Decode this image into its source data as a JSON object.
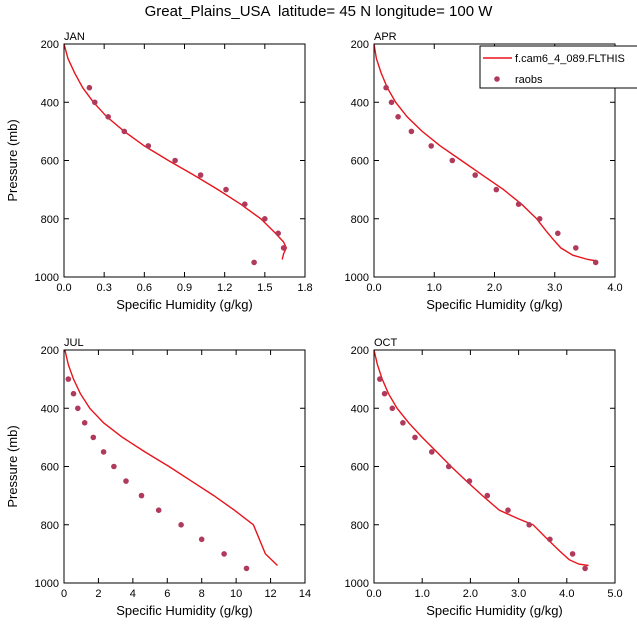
{
  "figure_title": "Great_Plains_USA  latitude= 45 N longitude= 100 W",
  "colors": {
    "model_line": "#e8141c",
    "obs_marker": "#b03a5b",
    "axis": "#000000"
  },
  "legend": {
    "model_label": "f.cam6_4_089.FLTHIS",
    "obs_label": "raobs"
  },
  "chart_data": [
    {
      "type": "line",
      "panel": "JAN",
      "xlabel": "Specific Humidity (g/kg)",
      "ylabel": "Pressure (mb)",
      "xlim": [
        0.0,
        1.8
      ],
      "ylim": [
        200,
        1000
      ],
      "y_inverted": true,
      "xticks": [
        "0.0",
        "0.3",
        "0.6",
        "0.9",
        "1.2",
        "1.5",
        "1.8"
      ],
      "yticks": [
        "200",
        "400",
        "600",
        "800",
        "1000"
      ],
      "series": [
        {
          "name": "f.cam6_4_089.FLTHIS",
          "kind": "line",
          "x": [
            0.0,
            0.03,
            0.08,
            0.14,
            0.22,
            0.32,
            0.45,
            0.6,
            0.78,
            0.97,
            1.15,
            1.32,
            1.47,
            1.58,
            1.64,
            1.66,
            1.64,
            1.63
          ],
          "y": [
            200,
            250,
            300,
            350,
            400,
            450,
            500,
            550,
            600,
            650,
            700,
            750,
            800,
            850,
            880,
            900,
            920,
            940
          ]
        },
        {
          "name": "raobs",
          "kind": "scatter",
          "x": [
            0.19,
            0.23,
            0.33,
            0.45,
            0.63,
            0.83,
            1.02,
            1.21,
            1.35,
            1.5,
            1.6,
            1.64,
            1.42
          ],
          "y": [
            350,
            400,
            450,
            500,
            550,
            600,
            650,
            700,
            750,
            800,
            850,
            900,
            950
          ]
        }
      ]
    },
    {
      "type": "line",
      "panel": "APR",
      "xlabel": "Specific Humidity (g/kg)",
      "ylabel": "",
      "xlim": [
        0.0,
        4.0
      ],
      "ylim": [
        200,
        1000
      ],
      "y_inverted": true,
      "xticks": [
        "0.0",
        "1.0",
        "2.0",
        "3.0",
        "4.0"
      ],
      "yticks": [
        "200",
        "400",
        "600",
        "800",
        "1000"
      ],
      "series": [
        {
          "name": "f.cam6_4_089.FLTHIS",
          "kind": "line",
          "x": [
            0.0,
            0.04,
            0.12,
            0.22,
            0.36,
            0.55,
            0.8,
            1.1,
            1.45,
            1.8,
            2.15,
            2.45,
            2.7,
            2.85,
            2.97,
            3.1,
            3.3,
            3.55,
            3.7
          ],
          "y": [
            200,
            250,
            300,
            350,
            400,
            450,
            500,
            550,
            600,
            650,
            700,
            750,
            800,
            840,
            870,
            900,
            925,
            940,
            945
          ]
        },
        {
          "name": "raobs",
          "kind": "scatter",
          "x": [
            0.2,
            0.29,
            0.4,
            0.62,
            0.95,
            1.3,
            1.68,
            2.03,
            2.4,
            2.75,
            3.05,
            3.35,
            3.68
          ],
          "y": [
            350,
            400,
            450,
            500,
            550,
            600,
            650,
            700,
            750,
            800,
            850,
            900,
            950
          ]
        }
      ]
    },
    {
      "type": "line",
      "panel": "JUL",
      "xlabel": "Specific Humidity (g/kg)",
      "ylabel": "Pressure (mb)",
      "xlim": [
        0,
        14
      ],
      "ylim": [
        200,
        1000
      ],
      "y_inverted": true,
      "xticks": [
        "0",
        "2",
        "4",
        "6",
        "8",
        "10",
        "12",
        "14"
      ],
      "yticks": [
        "200",
        "400",
        "600",
        "800",
        "1000"
      ],
      "series": [
        {
          "name": "f.cam6_4_089.FLTHIS",
          "kind": "line",
          "x": [
            0.05,
            0.25,
            0.55,
            0.95,
            1.5,
            2.3,
            3.4,
            4.7,
            6.1,
            7.4,
            8.7,
            9.9,
            11.0,
            11.7,
            12.4
          ],
          "y": [
            200,
            250,
            300,
            350,
            400,
            450,
            500,
            550,
            600,
            650,
            700,
            750,
            800,
            900,
            940
          ]
        },
        {
          "name": "raobs",
          "kind": "scatter",
          "x": [
            0.25,
            0.55,
            0.8,
            1.2,
            1.7,
            2.3,
            2.9,
            3.6,
            4.5,
            5.5,
            6.8,
            8.0,
            9.3,
            10.6
          ],
          "y": [
            300,
            350,
            400,
            450,
            500,
            550,
            600,
            650,
            700,
            750,
            800,
            850,
            900,
            950
          ]
        }
      ]
    },
    {
      "type": "line",
      "panel": "OCT",
      "xlabel": "Specific Humidity (g/kg)",
      "ylabel": "",
      "xlim": [
        0.0,
        5.0
      ],
      "ylim": [
        200,
        1000
      ],
      "y_inverted": true,
      "xticks": [
        "0.0",
        "1.0",
        "2.0",
        "3.0",
        "4.0",
        "5.0"
      ],
      "yticks": [
        "200",
        "400",
        "600",
        "800",
        "1000"
      ],
      "series": [
        {
          "name": "f.cam6_4_089.FLTHIS",
          "kind": "line",
          "x": [
            0.0,
            0.07,
            0.17,
            0.3,
            0.48,
            0.72,
            1.0,
            1.3,
            1.6,
            1.92,
            2.25,
            2.6,
            3.0,
            3.3,
            3.6,
            3.85,
            4.05,
            4.25,
            4.45
          ],
          "y": [
            200,
            250,
            300,
            350,
            400,
            450,
            500,
            550,
            600,
            650,
            700,
            750,
            780,
            800,
            850,
            890,
            920,
            935,
            940
          ]
        },
        {
          "name": "raobs",
          "kind": "scatter",
          "x": [
            0.12,
            0.22,
            0.38,
            0.6,
            0.85,
            1.2,
            1.55,
            1.98,
            2.35,
            2.78,
            3.22,
            3.65,
            4.12,
            4.38
          ],
          "y": [
            300,
            350,
            400,
            450,
            500,
            550,
            600,
            650,
            700,
            750,
            800,
            850,
            900,
            950
          ]
        }
      ]
    }
  ]
}
